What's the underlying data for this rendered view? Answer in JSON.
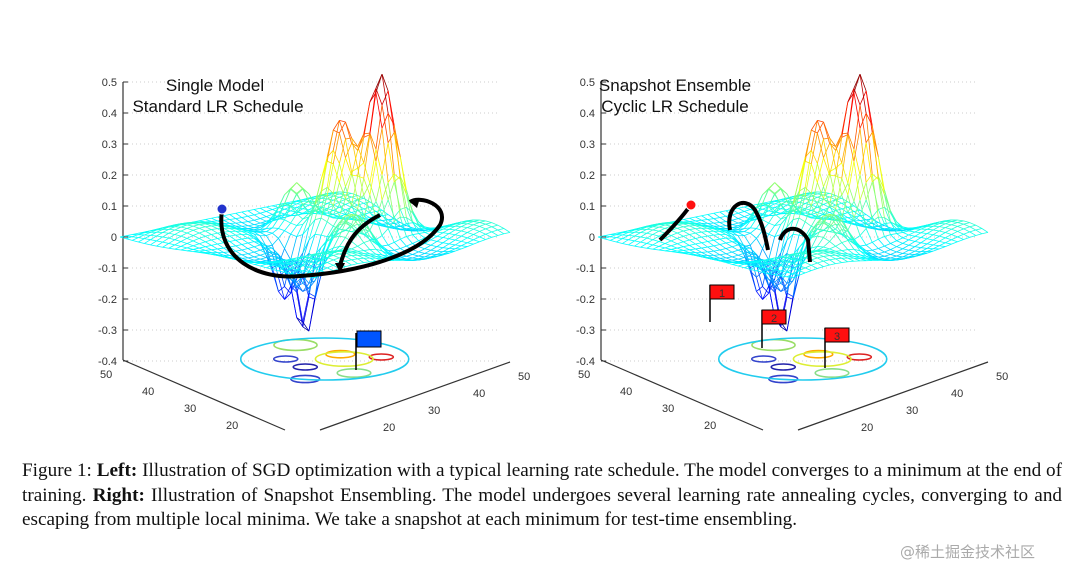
{
  "figure": {
    "panels": [
      {
        "title_line1": "Single Model",
        "title_line2": "Standard LR Schedule",
        "marker_color": "#2233cc",
        "flag_color": "#0055ff",
        "flags": []
      },
      {
        "title_line1": "Snapshot Ensemble",
        "title_line2": "Cyclic LR Schedule",
        "marker_color": "#ff1010",
        "flag_color": "#ff1010",
        "flags": [
          "1",
          "2",
          "3"
        ]
      }
    ],
    "z_ticks": [
      "0.5",
      "0.4",
      "0.3",
      "0.2",
      "0.1",
      "0",
      "-0.1",
      "-0.2",
      "-0.3",
      "-0.4"
    ],
    "left_axis_ticks": [
      "50",
      "40",
      "30",
      "20"
    ],
    "right_axis_ticks": [
      "50",
      "40",
      "30",
      "20"
    ]
  },
  "caption": {
    "label": "Figure 1:",
    "left_bold": "Left:",
    "left_text": "Illustration of SGD optimization with a typical learning rate schedule. The model converges to a minimum at the end of training.",
    "right_bold": "Right:",
    "right_text": "Illustration of Snapshot Ensembling. The model undergoes several learning rate annealing cycles, converging to and escaping from multiple local minima. We take a snapshot at each minimum for test-time ensembling."
  },
  "watermark": "@稀土掘金技术社区"
}
